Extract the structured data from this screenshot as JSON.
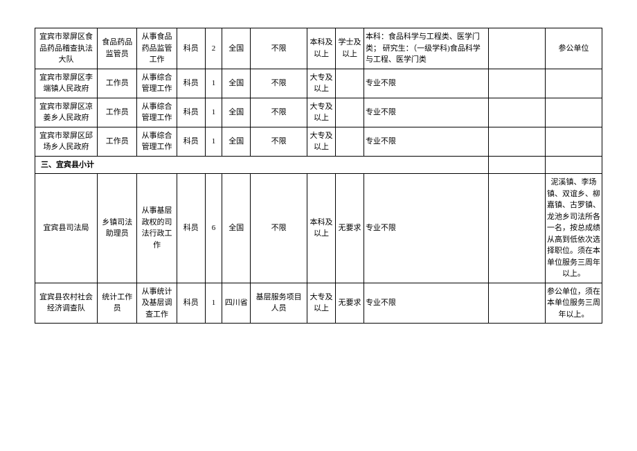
{
  "table": {
    "rows": [
      {
        "org": "宜宾市翠屏区食品药品稽查执法大队",
        "position": "食品药品监管员",
        "duty": "从事食品药品监管工作",
        "level": "科员",
        "count": "2",
        "area": "全国",
        "scope": "不限",
        "edu": "本科及以上",
        "degree": "学士及以上",
        "major": "本科：食品科学与工程类、医学门类；\n研究生：（一级学科)食品科学与工程、医学门类",
        "other": "",
        "note": "参公单位"
      },
      {
        "org": "宜宾市翠屏区李端镇人民政府",
        "position": "工作员",
        "duty": "从事综合管理工作",
        "level": "科员",
        "count": "1",
        "area": "全国",
        "scope": "不限",
        "edu": "大专及以上",
        "degree": "",
        "major": "专业不限",
        "other": "",
        "note": ""
      },
      {
        "org": "宜宾市翠屏区凉姜乡人民政府",
        "position": "工作员",
        "duty": "从事综合管理工作",
        "level": "科员",
        "count": "1",
        "area": "全国",
        "scope": "不限",
        "edu": "大专及以上",
        "degree": "",
        "major": "专业不限",
        "other": "",
        "note": ""
      },
      {
        "org": "宜宾市翠屏区邱场乡人民政府",
        "position": "工作员",
        "duty": "从事综合管理工作",
        "level": "科员",
        "count": "1",
        "area": "全国",
        "scope": "不限",
        "edu": "大专及以上",
        "degree": "",
        "major": "专业不限",
        "other": "",
        "note": ""
      }
    ],
    "subtotal_label": "三、宜宾县小计",
    "rows2": [
      {
        "org": "宜宾县司法局",
        "position": "乡镇司法助理员",
        "duty": "从事基层政权的司法行政工作",
        "level": "科员",
        "count": "6",
        "area": "全国",
        "scope": "不限",
        "edu": "本科及以上",
        "degree": "无要求",
        "major": "专业不限",
        "other": "",
        "note": "泥溪镇、李场镇、双谊乡、柳嘉镇、古罗镇、龙池乡司法所各一名，按总成绩从高到低依次选择职位。须在本单位服务三周年以上。"
      },
      {
        "org": "宜宾县农村社会经济调查队",
        "position": "统计工作员",
        "duty": "从事统计及基层调查工作",
        "level": "科员",
        "count": "1",
        "area": "四川省",
        "scope": "基层服务项目人员",
        "edu": "大专及以上",
        "degree": "无要求",
        "major": "专业不限",
        "other": "",
        "note": "参公单位，须在本单位服务三周年以上。"
      }
    ]
  }
}
